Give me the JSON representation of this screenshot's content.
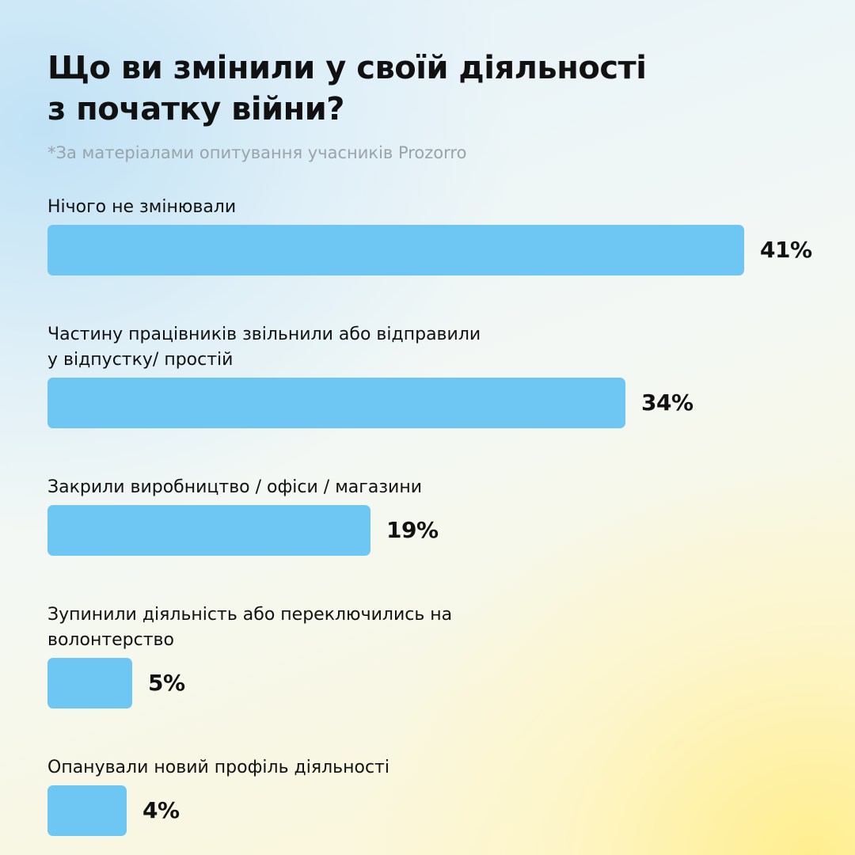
{
  "header": {
    "title_line1": "Що ви змінили у своїй діяльності",
    "title_line2": "з початку війни?",
    "subtitle": "*За матеріалами опитування учасників Prozorro"
  },
  "colors": {
    "bar": "#6ec6f2",
    "text": "#111111",
    "subtitle": "#9aa3a8"
  },
  "chart_data": {
    "type": "bar",
    "orientation": "horizontal",
    "title": "Що ви змінили у своїй діяльності з початку війни?",
    "subtitle": "*За матеріалами опитування учасників Prozorro",
    "categories": [
      "Нічого не змінювали",
      "Частину працівників звільнили або відправили у відпустку/ простій",
      "Закрили виробництво / офіси / магазини",
      "Зупинили діяльність або переключились на волонтерство",
      "Опанували новий профіль діяльності"
    ],
    "category_lines": [
      [
        "Нічого не змінювали"
      ],
      [
        "Частину працівників звільнили або відправили",
        "у відпустку/ простій"
      ],
      [
        "Закрили виробництво / офіси / магазини"
      ],
      [
        "Зупинили діяльність або переключились на",
        "волонтерство"
      ],
      [
        "Опанували новий профіль діяльності"
      ]
    ],
    "values": [
      41,
      34,
      19,
      5,
      4
    ],
    "value_labels": [
      "41%",
      "34%",
      "19%",
      "5%",
      "4%"
    ],
    "unit": "%",
    "xlim": [
      0,
      41
    ],
    "grid": false,
    "legend": "none"
  }
}
